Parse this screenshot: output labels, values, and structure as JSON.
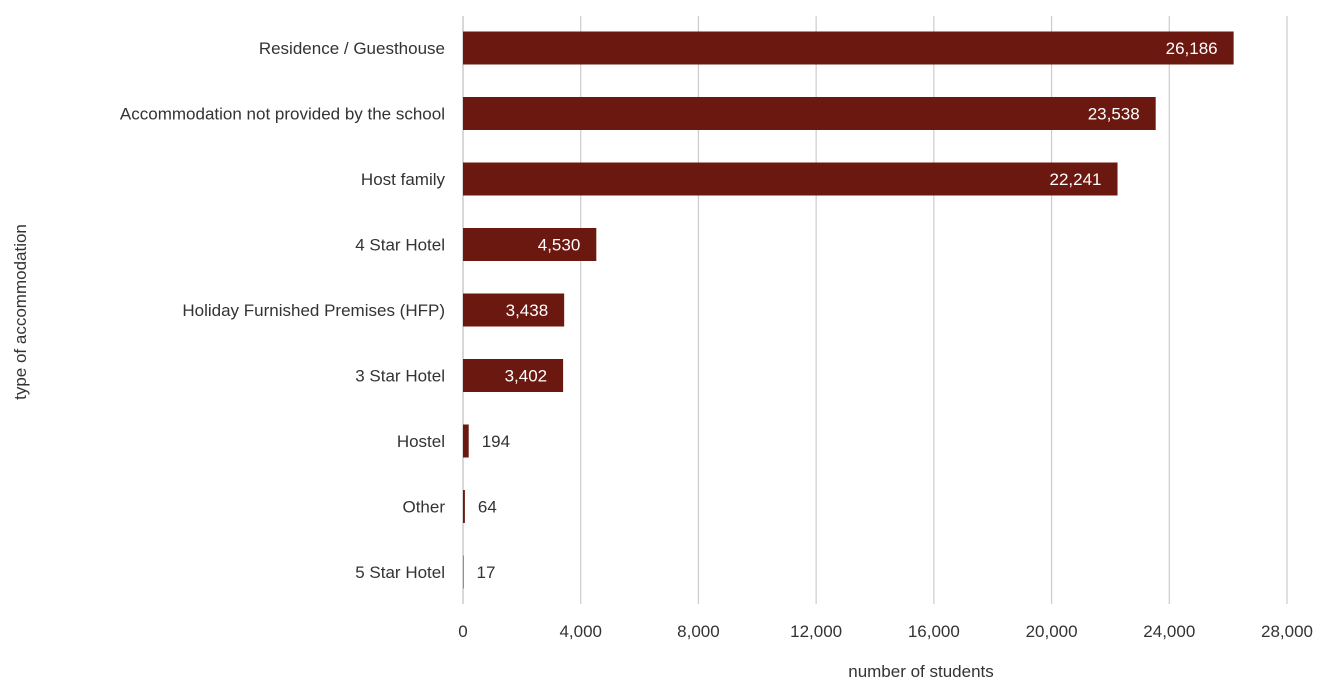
{
  "chart_data": {
    "type": "bar",
    "orientation": "horizontal",
    "categories": [
      "Residence / Guesthouse",
      "Accommodation not provided by the school",
      "Host family",
      "4 Star Hotel",
      "Holiday Furnished Premises (HFP)",
      "3 Star Hotel",
      "Hostel",
      "Other",
      "5 Star Hotel"
    ],
    "values": [
      26186,
      23538,
      22241,
      4530,
      3438,
      3402,
      194,
      64,
      17
    ],
    "value_labels": [
      "26,186",
      "23,538",
      "22,241",
      "4,530",
      "3,438",
      "3,402",
      "194",
      "64",
      "17"
    ],
    "xlabel": "number of students",
    "ylabel": "type of accommodation",
    "xlim": [
      0,
      28000
    ],
    "xticks": [
      0,
      4000,
      8000,
      12000,
      16000,
      20000,
      24000,
      28000
    ],
    "xtick_labels": [
      "0",
      "4,000",
      "8,000",
      "12,000",
      "16,000",
      "20,000",
      "24,000",
      "28,000"
    ],
    "grid": "vertical",
    "legend": "none",
    "bar_color": "#6b1810"
  }
}
